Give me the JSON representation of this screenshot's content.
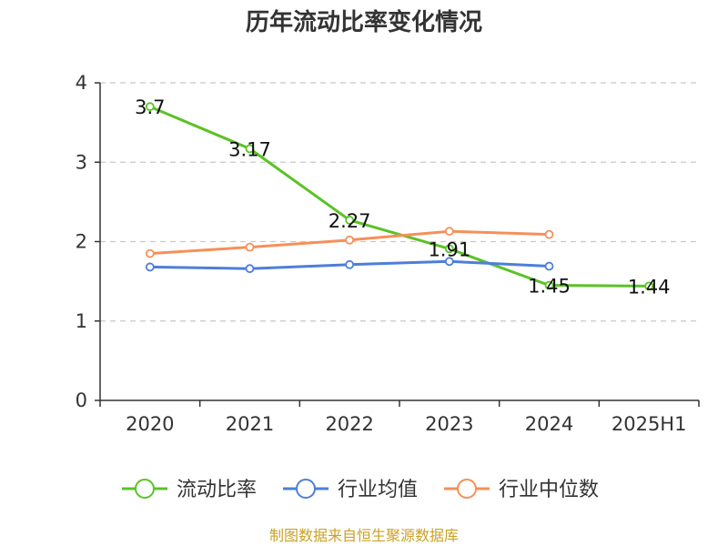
{
  "source_text": "制图数据来自恒生聚源数据库",
  "chart_data": {
    "type": "line",
    "title": "历年流动比率变化情况",
    "categories": [
      "2020",
      "2021",
      "2022",
      "2023",
      "2024",
      "2025H1"
    ],
    "ylim": [
      0,
      4
    ],
    "yticks": [
      0,
      1,
      2,
      3,
      4
    ],
    "ytick_labels": [
      "0",
      "1",
      "2",
      "3",
      "4"
    ],
    "grid": true,
    "legend_position": "bottom",
    "series": [
      {
        "name": "流动比率",
        "color": "#5bc227",
        "values": [
          3.7,
          3.17,
          2.27,
          1.91,
          1.45,
          1.44
        ],
        "labels": [
          "3.7",
          "3.17",
          "2.27",
          "1.91",
          "1.45",
          "1.44"
        ],
        "show_labels": true
      },
      {
        "name": "行业均值",
        "color": "#4d7fd9",
        "values": [
          1.68,
          1.66,
          1.71,
          1.75,
          1.69,
          null
        ],
        "show_labels": false
      },
      {
        "name": "行业中位数",
        "color": "#f5905a",
        "values": [
          1.85,
          1.93,
          2.02,
          2.13,
          2.09,
          null
        ],
        "show_labels": false
      }
    ]
  }
}
